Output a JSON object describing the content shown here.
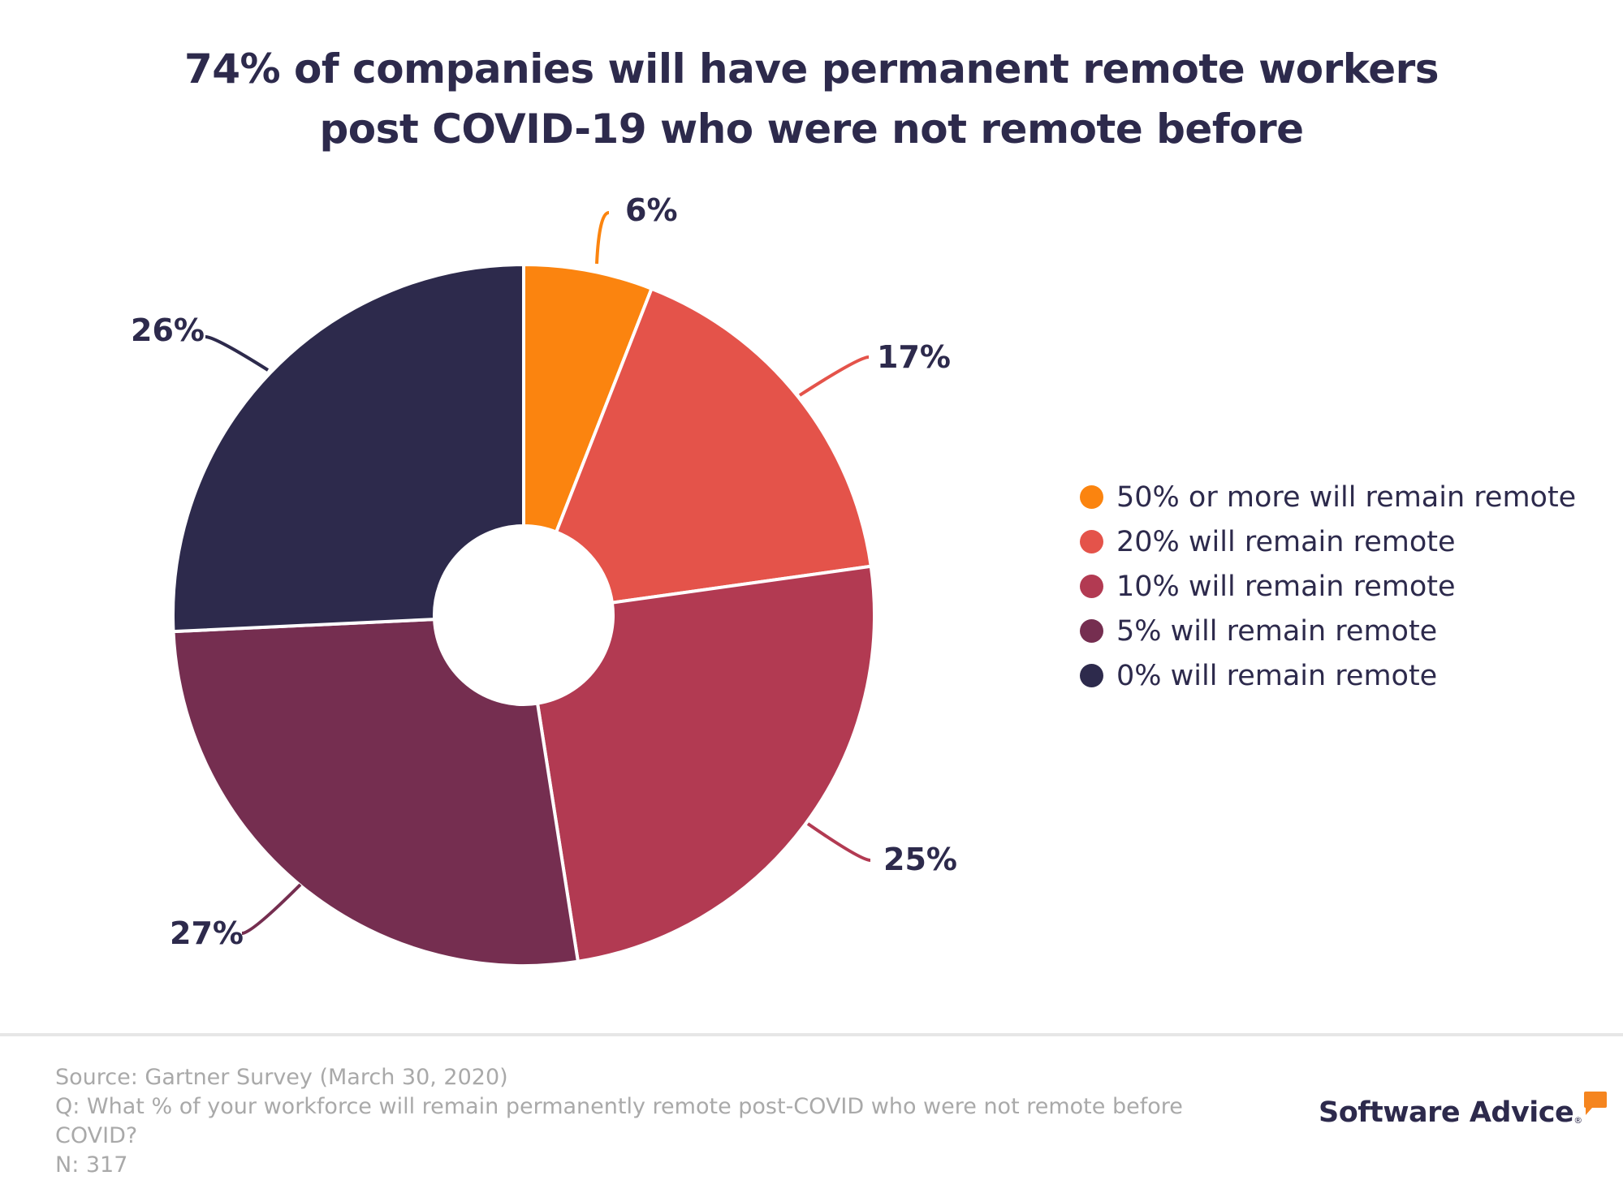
{
  "title": {
    "line1": "74% of companies will have permanent remote workers",
    "line2": "post COVID-19 who were not remote before"
  },
  "chart_data": {
    "type": "pie",
    "variant": "donut",
    "title": "74% of companies will have permanent remote workers post COVID-19 who were not remote before",
    "categories": [
      "50% or more will remain remote",
      "20% will remain remote",
      "10% will remain remote",
      "5% will remain remote",
      "0% will remain remote"
    ],
    "values": [
      6,
      17,
      25,
      27,
      26
    ],
    "labels": [
      "6%",
      "17%",
      "25%",
      "27%",
      "26%"
    ],
    "colors": [
      "#fb840f",
      "#e4534a",
      "#b23a52",
      "#752e50",
      "#2d2a4c"
    ],
    "legend_position": "right"
  },
  "footer": {
    "source": "Source: Gartner Survey (March 30, 2020)",
    "question": "Q: What % of your workforce will remain permanently remote post-COVID who were not remote before COVID?",
    "n": "N: 317"
  },
  "logo": {
    "text": "Software Advice",
    "registered": "®",
    "accent_color": "#f5851f"
  }
}
